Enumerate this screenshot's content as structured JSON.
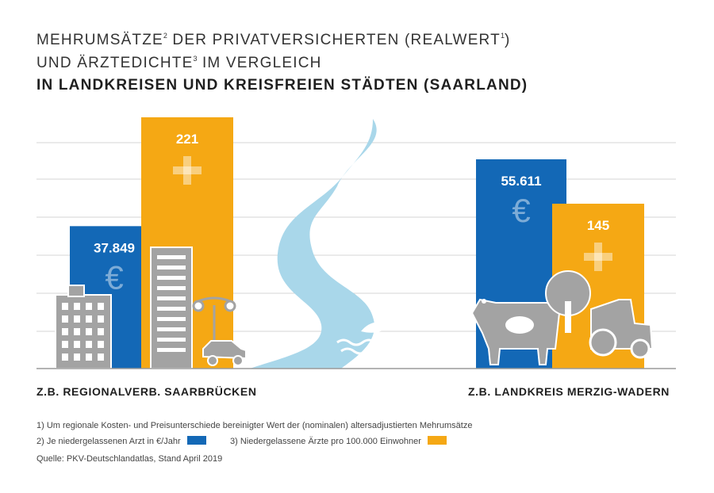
{
  "title": {
    "line1_main": "MEHRUMSÄTZE",
    "line1_sup": "2",
    "line1_rest": " DER PRIVATVERSICHERTEN (REALWERT",
    "line1_sup2": "1",
    "line1_end": ")",
    "line2_main": "UND ÄRZTEDICHTE",
    "line2_sup": "3",
    "line2_rest": " IM VERGLEICH",
    "line3": "IN LANDKREISEN UND KREISFREIEN STÄDTEN (SAARLAND)"
  },
  "colors": {
    "blue": "#1368b6",
    "orange": "#f5a814",
    "gray": "#9e9e9e",
    "river": "#a9d7ea",
    "grid": "#d4d4d4"
  },
  "chart_data": {
    "type": "bar",
    "categories": [
      "Z.B. REGIONALVERB. SAARBRÜCKEN",
      "Z.B. LANDKREIS MERZIG-WADERN"
    ],
    "series": [
      {
        "name": "Je niedergelassenen Arzt in €/Jahr",
        "values": [
          37849,
          55611
        ],
        "labels": [
          "37.849",
          "55.611"
        ],
        "icon": "euro-icon",
        "color": "#1368b6"
      },
      {
        "name": "Niedergelassene Ärzte pro 100.000 Einwohner",
        "values": [
          221,
          145
        ],
        "labels": [
          "221",
          "145"
        ],
        "icon": "plus-icon",
        "color": "#f5a814"
      }
    ],
    "grid": true
  },
  "notes": {
    "n1": "1)  Um regionale Kosten- und Preisunterschiede bereinigter Wert der (nominalen) altersadjustierten Mehrumsätze",
    "n2": "2)  Je niedergelassenen Arzt in €/Jahr",
    "n3": "3)  Niedergelassene Ärzte pro 100.000 Einwohner",
    "source": "Quelle: PKV-Deutschlandatlas, Stand April 2019"
  }
}
